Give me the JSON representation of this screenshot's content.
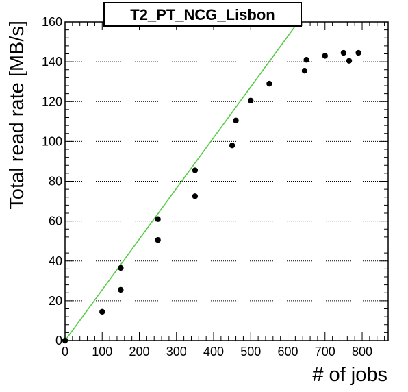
{
  "chart_data": {
    "type": "scatter",
    "title": "T2_PT_NCG_Lisbon",
    "xlabel": "# of jobs",
    "ylabel": "Total read rate [MB/s]",
    "xlim": [
      0,
      870
    ],
    "ylim": [
      0,
      160
    ],
    "x_ticks": [
      0,
      100,
      200,
      300,
      400,
      500,
      600,
      700,
      800
    ],
    "y_ticks": [
      0,
      20,
      40,
      60,
      80,
      100,
      120,
      140,
      160
    ],
    "grid": "horizontal dotted",
    "colors": {
      "points": "#000000",
      "fit_line": "#55cc44",
      "frame": "#000000"
    },
    "series": [
      {
        "points": [
          {
            "x": 0,
            "y": 0
          },
          {
            "x": 100,
            "y": 14.5
          },
          {
            "x": 150,
            "y": 25.5
          },
          {
            "x": 150,
            "y": 36.5
          },
          {
            "x": 250,
            "y": 50.5
          },
          {
            "x": 250,
            "y": 61
          },
          {
            "x": 350,
            "y": 72.5
          },
          {
            "x": 350,
            "y": 85.5
          },
          {
            "x": 450,
            "y": 98
          },
          {
            "x": 460,
            "y": 110.5
          },
          {
            "x": 500,
            "y": 120.5
          },
          {
            "x": 550,
            "y": 129
          },
          {
            "x": 645,
            "y": 135.5
          },
          {
            "x": 650,
            "y": 141
          },
          {
            "x": 700,
            "y": 143
          },
          {
            "x": 750,
            "y": 144.5
          },
          {
            "x": 765,
            "y": 140.5
          },
          {
            "x": 790,
            "y": 144.5
          }
        ]
      }
    ],
    "fit_line": {
      "x": [
        0,
        628
      ],
      "y": [
        0,
        160
      ]
    }
  }
}
